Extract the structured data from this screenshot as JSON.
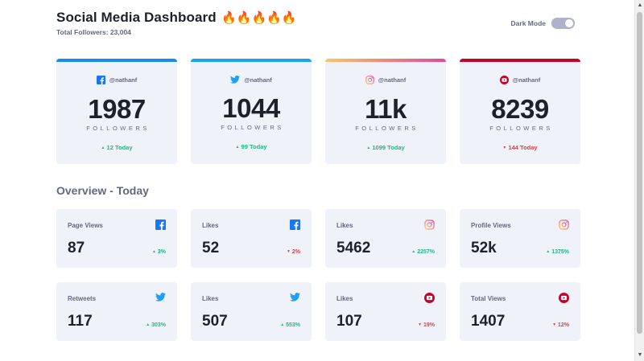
{
  "header": {
    "title": "Social Media Dashboard",
    "emoji": "🔥🔥🔥🔥🔥",
    "total_followers": "Total Followers: 23,004",
    "dark_mode_label": "Dark Mode"
  },
  "colors": {
    "facebook": "#1877f2",
    "twitter": "#1da1f2",
    "instagram_gradient": [
      "#fdc468",
      "#df4996"
    ],
    "youtube": "#c4032a",
    "up": "#1eb589",
    "down": "#dc414c",
    "card_bg": "#f0f2fa"
  },
  "follower_cards": [
    {
      "network": "facebook",
      "icon": "facebook-icon",
      "handle": "@nathanf",
      "count": "1987",
      "label": "FOLLOWERS",
      "delta": "12 Today",
      "direction": "up"
    },
    {
      "network": "twitter",
      "icon": "twitter-icon",
      "handle": "@nathanf",
      "count": "1044",
      "label": "FOLLOWERS",
      "delta": "99 Today",
      "direction": "up"
    },
    {
      "network": "instagram",
      "icon": "instagram-icon",
      "handle": "@nathanf",
      "count": "11k",
      "label": "FOLLOWERS",
      "delta": "1099 Today",
      "direction": "up"
    },
    {
      "network": "youtube",
      "icon": "youtube-icon",
      "handle": "@nathanf",
      "count": "8239",
      "label": "FOLLOWERS",
      "delta": "144 Today",
      "direction": "down"
    }
  ],
  "overview": {
    "title": "Overview - Today",
    "cards": [
      {
        "title": "Page Views",
        "icon": "facebook-icon",
        "value": "87",
        "delta": "3%",
        "direction": "up"
      },
      {
        "title": "Likes",
        "icon": "facebook-icon",
        "value": "52",
        "delta": "2%",
        "direction": "down"
      },
      {
        "title": "Likes",
        "icon": "instagram-icon",
        "value": "5462",
        "delta": "2257%",
        "direction": "up"
      },
      {
        "title": "Profile Views",
        "icon": "instagram-icon",
        "value": "52k",
        "delta": "1375%",
        "direction": "up"
      },
      {
        "title": "Retweets",
        "icon": "twitter-icon",
        "value": "117",
        "delta": "303%",
        "direction": "up"
      },
      {
        "title": "Likes",
        "icon": "twitter-icon",
        "value": "507",
        "delta": "553%",
        "direction": "up"
      },
      {
        "title": "Likes",
        "icon": "youtube-icon",
        "value": "107",
        "delta": "19%",
        "direction": "down"
      },
      {
        "title": "Total Views",
        "icon": "youtube-icon",
        "value": "1407",
        "delta": "12%",
        "direction": "down"
      }
    ]
  },
  "arrows": {
    "up": "▲",
    "down": "▼"
  }
}
